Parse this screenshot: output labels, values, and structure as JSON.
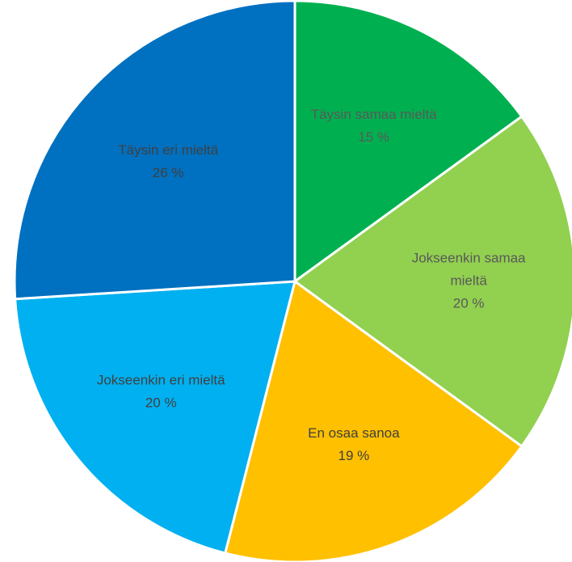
{
  "chart_data": {
    "type": "pie",
    "title": "",
    "slices": [
      {
        "label_lines": [
          "Täysin samaa mieltä"
        ],
        "value": 15,
        "value_label": "15 %",
        "color": "#00B050",
        "label_color": "#595959"
      },
      {
        "label_lines": [
          "Jokseenkin samaa",
          "mieltä"
        ],
        "value": 20,
        "value_label": "20 %",
        "color": "#92D050",
        "label_color": "#595959"
      },
      {
        "label_lines": [
          "En osaa sanoa"
        ],
        "value": 19,
        "value_label": "19 %",
        "color": "#FFC000",
        "label_color": "#404040"
      },
      {
        "label_lines": [
          "Jokseenkin eri mieltä"
        ],
        "value": 20,
        "value_label": "20 %",
        "color": "#00B0F0",
        "label_color": "#404040"
      },
      {
        "label_lines": [
          "Täysin eri mieltä"
        ],
        "value": 26,
        "value_label": "26 %",
        "color": "#0070C0",
        "label_color": "#404040"
      }
    ],
    "start_angle": "12 o'clock",
    "direction": "clockwise",
    "legend": "none"
  }
}
